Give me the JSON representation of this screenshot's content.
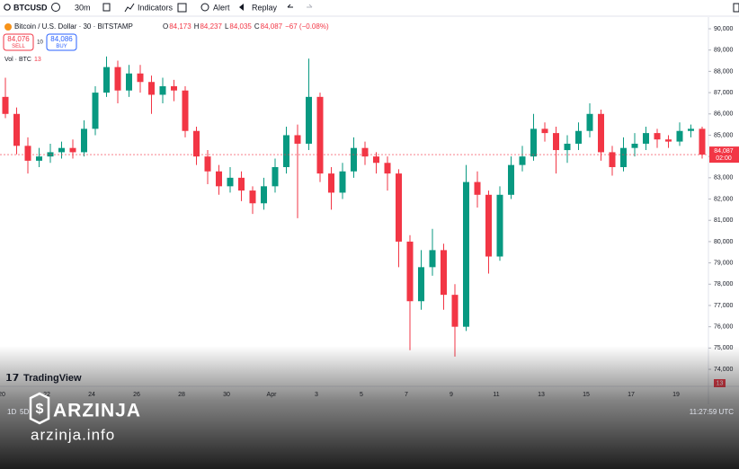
{
  "toolbar": {
    "symbol": "BTCUSD",
    "interval": "30m",
    "indicators": "Indicators",
    "alert": "Alert",
    "replay": "Replay"
  },
  "legend": {
    "title": "Bitcoin / U.S. Dollar · 30 · BITSTAMP",
    "ohlc": [
      {
        "key": "O",
        "value": "84,173"
      },
      {
        "key": "H",
        "value": "84,237"
      },
      {
        "key": "L",
        "value": "84,035"
      },
      {
        "key": "C",
        "value": "84,087"
      }
    ],
    "change": "−67 (−0.08%)",
    "sell_price": "84,076",
    "sell": "SELL",
    "spread": "10",
    "buy_price": "84,086",
    "buy": "BUY",
    "volume_label": "Vol · BTC",
    "volume_value": "13"
  },
  "chart_data": {
    "type": "candlestick",
    "x_labels": [
      "20",
      "22",
      "24",
      "26",
      "28",
      "30",
      "Apr",
      "3",
      "5",
      "7",
      "9",
      "11",
      "13",
      "15",
      "17",
      "19"
    ],
    "open": [
      86800,
      86000,
      84500,
      83800,
      84000,
      84200,
      84400,
      84200,
      85300,
      87000,
      88200,
      87100,
      87900,
      87500,
      86900,
      87300,
      87100,
      85200,
      84000,
      83300,
      82600,
      83000,
      82400,
      81800,
      82600,
      83500,
      85000,
      84600,
      86800,
      83200,
      82300,
      83300,
      84400,
      84000,
      83700,
      83200,
      80000,
      77200,
      78800,
      79600,
      77500,
      76000,
      82800,
      82200,
      79300,
      82200,
      83600,
      84000,
      85300,
      85100,
      84300,
      84600,
      85200,
      86000,
      84200,
      83500,
      84400,
      84600,
      85100,
      84800,
      84700,
      85200,
      85300
    ],
    "high": [
      87700,
      86300,
      84900,
      84400,
      84600,
      84700,
      84800,
      85700,
      87300,
      88700,
      88500,
      88300,
      88300,
      87800,
      87700,
      87600,
      87300,
      85400,
      84300,
      83600,
      83500,
      83300,
      82600,
      83000,
      83900,
      85400,
      85500,
      88600,
      87000,
      83500,
      83700,
      84900,
      84700,
      84200,
      84000,
      83400,
      80300,
      79600,
      80600,
      79900,
      78000,
      83600,
      83300,
      82400,
      82600,
      84000,
      84500,
      86000,
      85600,
      85400,
      85000,
      85600,
      86500,
      86200,
      84500,
      84900,
      85100,
      85400,
      85300,
      85000,
      85600,
      85500,
      85400
    ],
    "low": [
      85800,
      84100,
      83200,
      83500,
      83700,
      83900,
      83900,
      84000,
      85000,
      86800,
      86500,
      86800,
      87000,
      86000,
      86500,
      86600,
      84900,
      83600,
      82700,
      82200,
      82300,
      81900,
      81300,
      81500,
      82300,
      83200,
      81100,
      84300,
      82800,
      81500,
      82000,
      83000,
      83600,
      83200,
      82400,
      78800,
      74900,
      76800,
      78400,
      76800,
      74600,
      75800,
      81600,
      78500,
      79100,
      82000,
      83300,
      83800,
      84700,
      83200,
      83700,
      84300,
      84900,
      83800,
      83100,
      83300,
      84000,
      84300,
      84400,
      84400,
      84500,
      84900,
      83900
    ],
    "close": [
      86000,
      84500,
      83800,
      84000,
      84200,
      84400,
      84200,
      85300,
      87000,
      88200,
      87100,
      87900,
      87500,
      86900,
      87300,
      87100,
      85200,
      84000,
      83300,
      82600,
      83000,
      82400,
      81800,
      82600,
      83500,
      85000,
      84600,
      86800,
      83200,
      82300,
      83300,
      84400,
      84000,
      83700,
      83200,
      80000,
      77200,
      78800,
      79600,
      77500,
      76000,
      82800,
      82200,
      79300,
      82200,
      83600,
      84000,
      85300,
      85100,
      84300,
      84600,
      85200,
      86000,
      84200,
      83500,
      84400,
      84600,
      85100,
      84800,
      84700,
      85200,
      85300,
      84087
    ],
    "up_color": "#089981",
    "down_color": "#f23645",
    "ylim": [
      73200,
      90550
    ],
    "yticks": [
      {
        "value": 74000,
        "label": "74,000"
      },
      {
        "value": 75000,
        "label": "75,000"
      },
      {
        "value": 76000,
        "label": "76,000"
      },
      {
        "value": 77000,
        "label": "77,000"
      },
      {
        "value": 78000,
        "label": "78,000"
      },
      {
        "value": 79000,
        "label": "79,000"
      },
      {
        "value": 80000,
        "label": "80,000"
      },
      {
        "value": 81000,
        "label": "81,000"
      },
      {
        "value": 82000,
        "label": "82,000"
      },
      {
        "value": 83000,
        "label": "83,000"
      },
      {
        "value": 84000,
        "label": "84,000"
      },
      {
        "value": 85000,
        "label": "85,000"
      },
      {
        "value": 86000,
        "label": "86,000"
      },
      {
        "value": 87000,
        "label": "87,000"
      },
      {
        "value": 88000,
        "label": "88,000"
      },
      {
        "value": 89000,
        "label": "89,000"
      },
      {
        "value": 90000,
        "label": "90,000"
      }
    ],
    "grid": false,
    "last_price": {
      "value": 84087,
      "label": "84,087"
    },
    "countdown": "02:00",
    "volume_badge": "13"
  },
  "footer": {
    "ranges": [
      "1D",
      "5D"
    ],
    "clock": "11:27:59 UTC"
  },
  "watermark": {
    "tradingview": "TradingView",
    "brand": "ARZINJA",
    "site": "arzinja.info"
  }
}
